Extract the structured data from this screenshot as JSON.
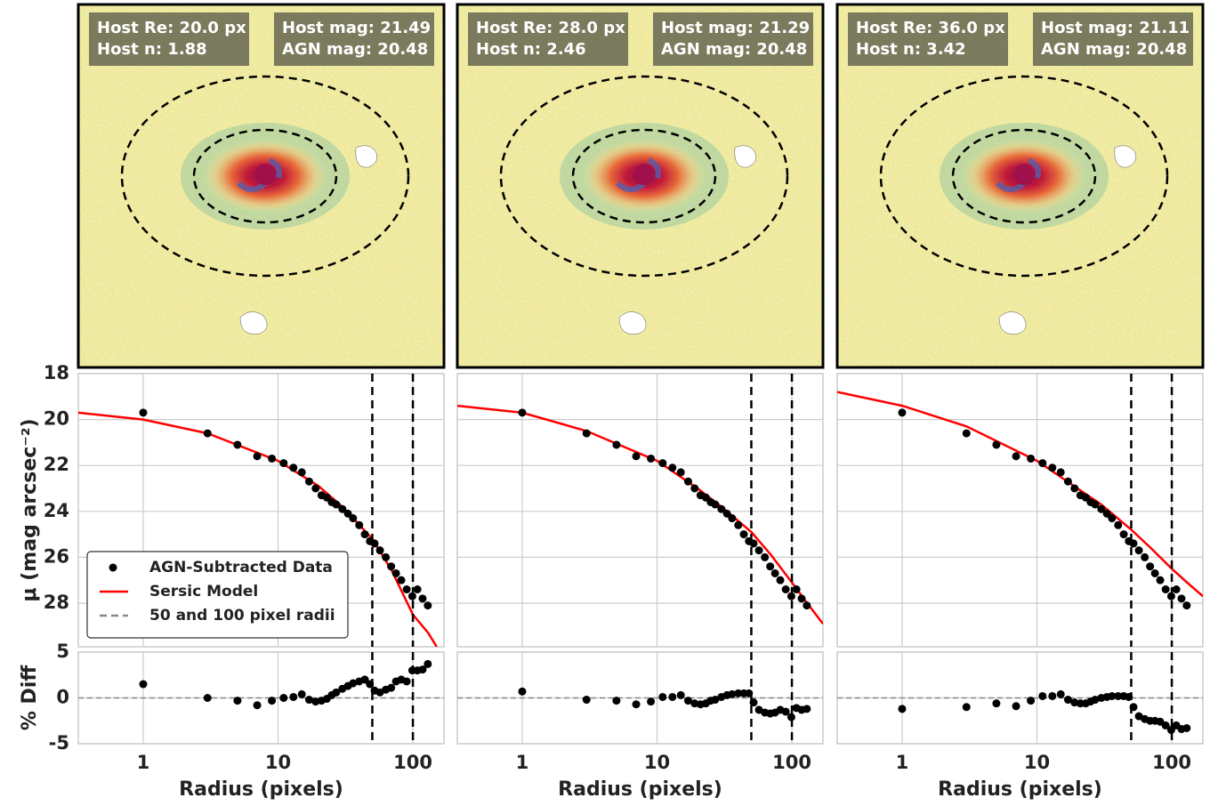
{
  "chart_data": [
    {
      "type": "profile",
      "image_text": {
        "left": [
          "Host Re: 20.0 px",
          "Host n: 1.88"
        ],
        "right": [
          "Host mag: 21.49",
          "AGN mag: 20.48"
        ]
      },
      "x": [
        1,
        3,
        5,
        7,
        9,
        11,
        13,
        15,
        17,
        19,
        21,
        23,
        25,
        27,
        30,
        33,
        36,
        40,
        44,
        48,
        52,
        57,
        63,
        69,
        75,
        82,
        90,
        99,
        108,
        118,
        129
      ],
      "series": [
        {
          "name": "AGN-Subtracted Data",
          "color": "#000000",
          "values": [
            19.7,
            20.6,
            21.1,
            21.6,
            21.7,
            21.9,
            22.1,
            22.3,
            22.7,
            23.0,
            23.3,
            23.4,
            23.6,
            23.7,
            23.9,
            24.1,
            24.3,
            24.6,
            25.0,
            25.3,
            25.4,
            25.7,
            26.0,
            26.4,
            26.7,
            27.0,
            27.4,
            27.7,
            27.4,
            27.8,
            28.1
          ]
        },
        {
          "name": "Sersic Model",
          "color": "#ff0000",
          "x": [
            0.33,
            1,
            3,
            10,
            20,
            30,
            50,
            70,
            100,
            130,
            150
          ],
          "values": [
            19.7,
            20.0,
            20.6,
            21.8,
            22.9,
            23.8,
            25.2,
            26.6,
            28.5,
            29.3,
            29.9
          ]
        }
      ],
      "vlines": {
        "name": "50 and 100 pixel radii",
        "values": [
          50,
          100
        ]
      },
      "xlim": [
        0.33,
        170
      ],
      "xticks": [
        1,
        10,
        100
      ],
      "xlabel": "Radius (pixels)",
      "ylim": [
        18,
        29.9
      ],
      "yticks": [
        18,
        20,
        22,
        24,
        26,
        28
      ],
      "ylabel": "μ (mag arcsec⁻²)",
      "diff": {
        "ylabel": "% Diff",
        "ylim": [
          -5,
          5
        ],
        "yticks": [
          -5,
          0,
          5
        ],
        "values": [
          1.5,
          0,
          -0.3,
          -0.8,
          -0.3,
          0,
          0.1,
          0.4,
          -0.2,
          -0.4,
          -0.3,
          -0.1,
          0.3,
          0.6,
          1.0,
          1.3,
          1.6,
          1.8,
          2.0,
          1.5,
          0.8,
          0.6,
          0.9,
          1.1,
          1.8,
          2.0,
          1.8,
          3.0,
          3.0,
          3.1,
          3.7
        ]
      },
      "legend": "lower left",
      "grid": true
    },
    {
      "type": "profile",
      "image_text": {
        "left": [
          "Host Re: 28.0 px",
          "Host n: 2.46"
        ],
        "right": [
          "Host mag: 21.29",
          "AGN mag: 20.48"
        ]
      },
      "x": [
        1,
        3,
        5,
        7,
        9,
        11,
        13,
        15,
        17,
        19,
        21,
        23,
        25,
        27,
        30,
        33,
        36,
        40,
        44,
        48,
        52,
        57,
        63,
        69,
        75,
        82,
        90,
        99,
        108,
        118,
        129
      ],
      "series": [
        {
          "color": "#000000",
          "values": [
            19.7,
            20.6,
            21.1,
            21.6,
            21.7,
            21.9,
            22.1,
            22.3,
            22.7,
            23.0,
            23.3,
            23.4,
            23.6,
            23.7,
            23.9,
            24.1,
            24.3,
            24.6,
            25.0,
            25.3,
            25.4,
            25.7,
            26.0,
            26.4,
            26.7,
            27.0,
            27.4,
            27.7,
            27.4,
            27.8,
            28.1
          ]
        },
        {
          "color": "#ff0000",
          "x": [
            0.33,
            1,
            3,
            10,
            20,
            30,
            50,
            70,
            100,
            130,
            170
          ],
          "values": [
            19.4,
            19.7,
            20.5,
            21.8,
            23.0,
            23.8,
            24.9,
            25.9,
            27.1,
            28.0,
            28.9
          ]
        }
      ],
      "vlines": {
        "values": [
          50,
          100
        ]
      },
      "xlim": [
        0.33,
        170
      ],
      "xticks": [
        1,
        10,
        100
      ],
      "xlabel": "Radius (pixels)",
      "ylim": [
        18,
        29.9
      ],
      "yticks": [
        18,
        20,
        22,
        24,
        26,
        28
      ],
      "diff": {
        "ylim": [
          -5,
          5
        ],
        "yticks": [
          -5,
          0,
          5
        ],
        "values": [
          0.7,
          -0.2,
          -0.3,
          -0.7,
          -0.4,
          0.1,
          0.1,
          0.3,
          -0.3,
          -0.6,
          -0.7,
          -0.6,
          -0.3,
          -0.2,
          0.1,
          0.3,
          0.4,
          0.5,
          0.5,
          0.5,
          -0.5,
          -1.3,
          -1.6,
          -1.7,
          -1.6,
          -1.3,
          -1.5,
          -2.1,
          -1.1,
          -1.3,
          -1.2
        ]
      },
      "grid": true
    },
    {
      "type": "profile",
      "image_text": {
        "left": [
          "Host Re: 36.0 px",
          "Host n: 3.42"
        ],
        "right": [
          "Host mag: 21.11",
          "AGN mag: 20.48"
        ]
      },
      "x": [
        1,
        3,
        5,
        7,
        9,
        11,
        13,
        15,
        17,
        19,
        21,
        23,
        25,
        27,
        30,
        33,
        36,
        40,
        44,
        48,
        52,
        57,
        63,
        69,
        75,
        82,
        90,
        99,
        108,
        118,
        129
      ],
      "series": [
        {
          "color": "#000000",
          "values": [
            19.7,
            20.6,
            21.1,
            21.6,
            21.7,
            21.9,
            22.1,
            22.3,
            22.7,
            23.0,
            23.3,
            23.4,
            23.6,
            23.7,
            23.9,
            24.1,
            24.3,
            24.6,
            25.0,
            25.3,
            25.4,
            25.7,
            26.0,
            26.4,
            26.7,
            27.0,
            27.4,
            27.7,
            27.4,
            27.8,
            28.1
          ]
        },
        {
          "color": "#ff0000",
          "x": [
            0.33,
            1,
            3,
            10,
            20,
            30,
            50,
            70,
            100,
            130,
            170
          ],
          "values": [
            18.8,
            19.4,
            20.3,
            21.8,
            23.0,
            23.7,
            24.8,
            25.6,
            26.5,
            27.1,
            27.7
          ]
        }
      ],
      "vlines": {
        "values": [
          50,
          100
        ]
      },
      "xlim": [
        0.33,
        170
      ],
      "xticks": [
        1,
        10,
        100
      ],
      "xlabel": "Radius (pixels)",
      "ylim": [
        18,
        29.9
      ],
      "yticks": [
        18,
        20,
        22,
        24,
        26,
        28
      ],
      "diff": {
        "ylim": [
          -5,
          5
        ],
        "yticks": [
          -5,
          0,
          5
        ],
        "values": [
          -1.2,
          -1.0,
          -0.6,
          -0.9,
          -0.3,
          0.2,
          0.2,
          0.4,
          -0.2,
          -0.5,
          -0.6,
          -0.6,
          -0.4,
          -0.2,
          0.0,
          0.1,
          0.2,
          0.2,
          0.2,
          0.1,
          -1.0,
          -2.0,
          -2.3,
          -2.5,
          -2.5,
          -2.6,
          -3.0,
          -3.5,
          -3.0,
          -3.4,
          -3.3
        ]
      },
      "grid": true
    }
  ]
}
